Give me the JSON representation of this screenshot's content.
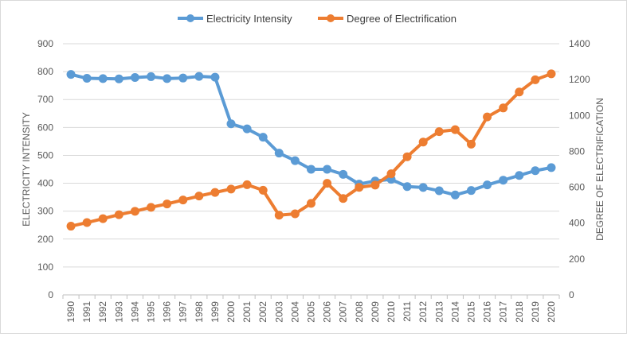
{
  "chart_data": {
    "type": "line",
    "title": "",
    "categories": [
      "1990",
      "1991",
      "1992",
      "1993",
      "1994",
      "1995",
      "1996",
      "1997",
      "1998",
      "1999",
      "2000",
      "2001",
      "2002",
      "2003",
      "2004",
      "2005",
      "2006",
      "2007",
      "2008",
      "2009",
      "2010",
      "2011",
      "2012",
      "2013",
      "2014",
      "2015",
      "2016",
      "2017",
      "2018",
      "2019",
      "2020"
    ],
    "series": [
      {
        "name": "Electricity Intensity",
        "axis": "left",
        "color": "#5B9BD5",
        "values": [
          790,
          776,
          775,
          774,
          779,
          782,
          775,
          777,
          783,
          780,
          613,
          595,
          565,
          508,
          481,
          450,
          450,
          432,
          397,
          408,
          414,
          388,
          385,
          373,
          358,
          374,
          394,
          411,
          428,
          445,
          456
        ]
      },
      {
        "name": "Degree of Electrification",
        "axis": "right",
        "color": "#ED7D31",
        "values": [
          383,
          403,
          425,
          447,
          466,
          488,
          507,
          529,
          551,
          571,
          590,
          614,
          583,
          444,
          452,
          510,
          622,
          537,
          599,
          612,
          675,
          770,
          852,
          910,
          921,
          840,
          992,
          1042,
          1131,
          1199,
          1232
        ]
      }
    ],
    "ylabel": "ELECTRICITY INTENSITY",
    "y2label": "DEGREE OF ELECTRIFICATION",
    "ylim": [
      0,
      900
    ],
    "y2lim": [
      0,
      1400
    ],
    "yticks": [
      "0",
      "100",
      "200",
      "300",
      "400",
      "500",
      "600",
      "700",
      "800",
      "900"
    ],
    "y2ticks": [
      "0",
      "200",
      "400",
      "600",
      "800",
      "1000",
      "1200",
      "1400"
    ],
    "grid": true,
    "legend_position": "top"
  }
}
